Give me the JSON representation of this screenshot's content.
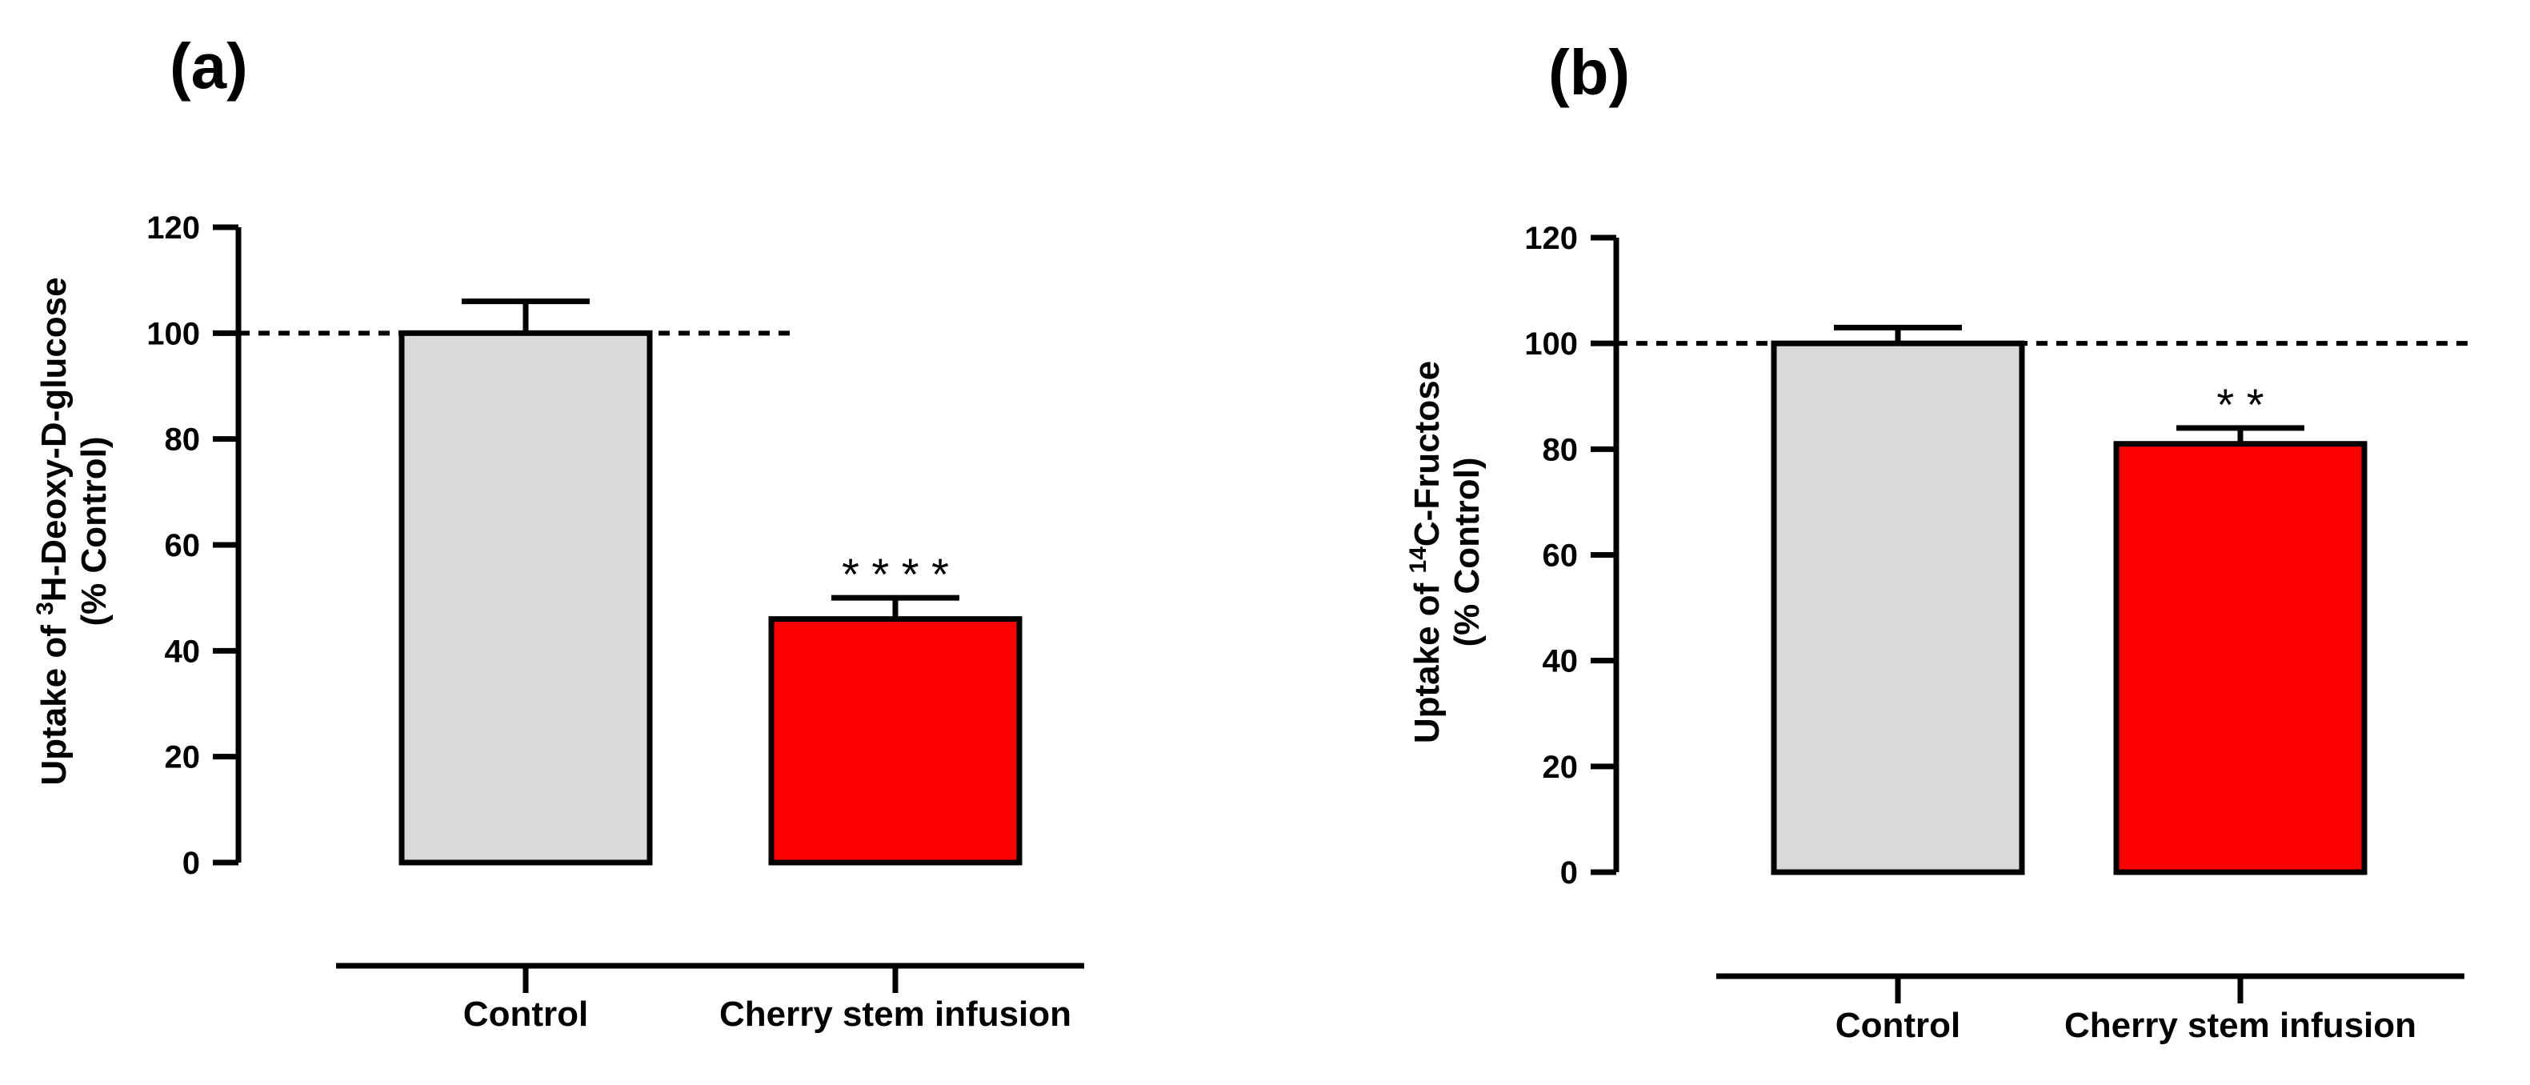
{
  "chart_data": [
    {
      "panel": "(a)",
      "type": "bar",
      "categories": [
        "Control",
        "Cherry stem infusion"
      ],
      "values": [
        100,
        46
      ],
      "errors": [
        6,
        4
      ],
      "colors": [
        "#d9d9d9",
        "#ff0000"
      ],
      "significance": [
        "",
        "* * * *"
      ],
      "ylabel_line1_prefix": "Uptake of ",
      "ylabel_superscript": "3",
      "ylabel_line1_suffix": "H-Deoxy-D-glucose",
      "ylabel_line2": "(% Control)",
      "ylim": [
        0,
        120
      ],
      "yticks": [
        0,
        20,
        40,
        60,
        80,
        100,
        120
      ],
      "reference_line": 100
    },
    {
      "panel": "(b)",
      "type": "bar",
      "categories": [
        "Control",
        "Cherry stem infusion"
      ],
      "values": [
        100,
        81
      ],
      "errors": [
        3,
        3
      ],
      "colors": [
        "#d9d9d9",
        "#ff0000"
      ],
      "significance": [
        "",
        "* *"
      ],
      "ylabel_line1_prefix": "Uptake of ",
      "ylabel_superscript": "14",
      "ylabel_line1_suffix": "C-Fructose",
      "ylabel_line2": "(% Control)",
      "ylim": [
        0,
        120
      ],
      "yticks": [
        0,
        20,
        40,
        60,
        80,
        100,
        120
      ],
      "reference_line": 100
    }
  ]
}
